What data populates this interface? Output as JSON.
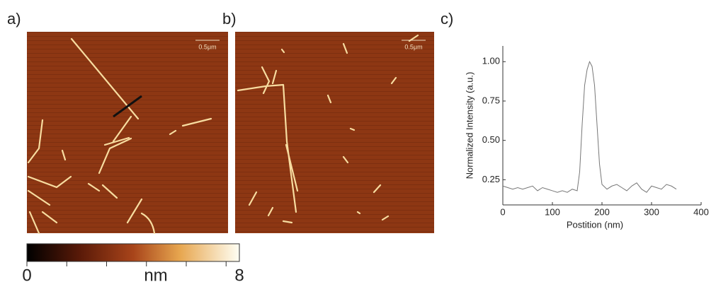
{
  "panels": [
    {
      "label": "a)",
      "scale_bar": "0.5μm"
    },
    {
      "label": "b)",
      "scale_bar": "0.5μm"
    },
    {
      "label": "c)"
    }
  ],
  "colorbar": {
    "label": "nm",
    "range": [
      0,
      8
    ],
    "ticks": [
      0,
      1.5,
      3,
      4.5,
      6,
      7.5
    ]
  },
  "chart_data": {
    "type": "line",
    "x_label": "Postition (nm)",
    "y_label": "Normalized Intensity (a.u.)",
    "xlim": [
      0,
      400
    ],
    "xticks": [
      0,
      100,
      200,
      300,
      400
    ],
    "ylim": [
      0.09,
      1.1
    ],
    "yticks": [
      0.25,
      {
        "value": 0.5,
        "label": "0.50"
      },
      0.75,
      {
        "value": 1,
        "label": "1.00"
      }
    ],
    "x": [
      0,
      10,
      20,
      30,
      40,
      50,
      60,
      70,
      80,
      90,
      100,
      110,
      120,
      130,
      140,
      150,
      155,
      160,
      165,
      170,
      175,
      180,
      185,
      190,
      195,
      200,
      210,
      220,
      230,
      240,
      250,
      260,
      270,
      280,
      290,
      300,
      310,
      320,
      330,
      340,
      350
    ],
    "series": [
      {
        "color": "#777777",
        "values": [
          0.21,
          0.2,
          0.19,
          0.2,
          0.19,
          0.2,
          0.21,
          0.18,
          0.2,
          0.19,
          0.18,
          0.17,
          0.18,
          0.17,
          0.19,
          0.18,
          0.3,
          0.6,
          0.85,
          0.95,
          1.0,
          0.97,
          0.85,
          0.6,
          0.35,
          0.22,
          0.19,
          0.21,
          0.22,
          0.2,
          0.18,
          0.21,
          0.23,
          0.19,
          0.17,
          0.21,
          0.2,
          0.19,
          0.22,
          0.21,
          0.19
        ]
      }
    ]
  }
}
